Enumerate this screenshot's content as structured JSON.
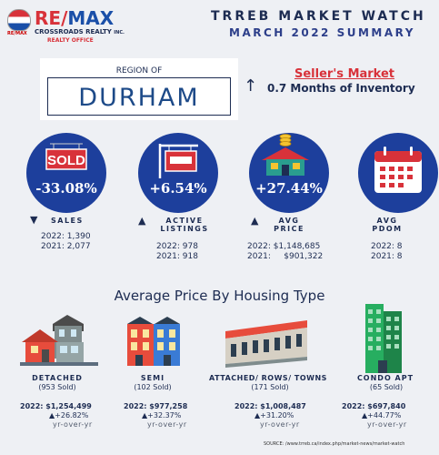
{
  "header": {
    "logo_small": "RE/MAX",
    "logo_brand_re": "RE",
    "logo_brand_max": "MAX",
    "logo_company": "CROSSROADS REALTY",
    "logo_inc": "INC.",
    "logo_office": "REALTY OFFICE",
    "title_line1": "TRREB MARKET WATCH",
    "title_line2": "MARCH 2022 SUMMARY"
  },
  "region": {
    "label": "REGION OF",
    "name": "DURHAM"
  },
  "market": {
    "status": "Seller's Market",
    "inventory": "0.7 Months of Inventory"
  },
  "metrics": [
    {
      "icon": "sold-sign-icon",
      "change": "-33.08%",
      "direction": "down",
      "label_line1": "SALES",
      "label_line2": "",
      "stat_2022": "2022: 1,390",
      "stat_2021": "2021: 2,077"
    },
    {
      "icon": "listing-sign-icon",
      "change": "+6.54%",
      "direction": "up",
      "label_line1": "ACTIVE",
      "label_line2": "LISTINGS",
      "stat_2022": "2022: 978",
      "stat_2021": "2021: 918"
    },
    {
      "icon": "house-coins-icon",
      "change": "+27.44%",
      "direction": "up",
      "label_line1": "AVG",
      "label_line2": "PRICE",
      "stat_2022": "2022: $1,148,685",
      "stat_2021": "2021:     $901,322"
    },
    {
      "icon": "calendar-icon",
      "change": "",
      "direction": "none",
      "label_line1": "AVG",
      "label_line2": "PDOM",
      "stat_2022": "2022: 8",
      "stat_2021": "2021: 8"
    }
  ],
  "section_title": "Average Price By Housing Type",
  "housing_types": [
    {
      "icon": "detached-house-icon",
      "name": "DETACHED",
      "sold": "(953 Sold)",
      "price": "2022: $1,254,499",
      "change": "+26.82%",
      "yoy": "yr-over-yr"
    },
    {
      "icon": "semi-house-icon",
      "name": "SEMI",
      "sold": "(102 Sold)",
      "price": "2022: $977,258",
      "change": "+32.37%",
      "yoy": "yr-over-yr"
    },
    {
      "icon": "townhouse-icon",
      "name": "ATTACHED/ ROWS/ TOWNS",
      "sold": "(171 Sold)",
      "price": "2022: $1,008,487",
      "change": "+31.20%",
      "yoy": "yr-over-yr"
    },
    {
      "icon": "condo-building-icon",
      "name": "CONDO APT",
      "sold": "(65 Sold)",
      "price": "2022: $697,840",
      "change": "+44.77%",
      "yoy": "yr-over-yr"
    }
  ],
  "source": "SOURCE:   /www.trreb.ca/index.php/market-news/market-watch"
}
